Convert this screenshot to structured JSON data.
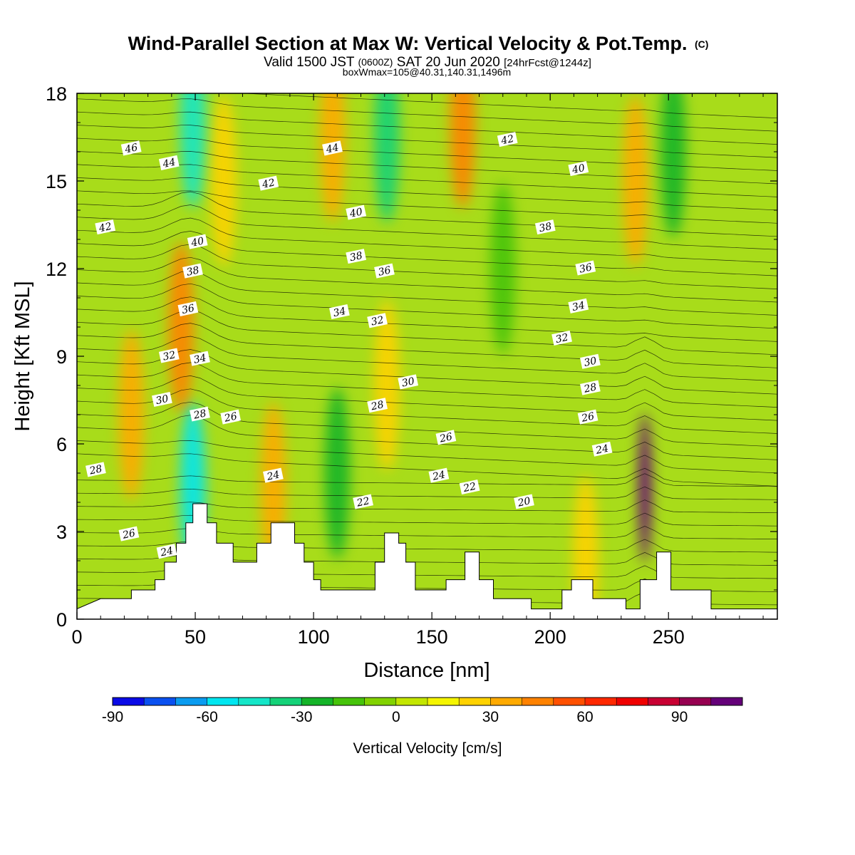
{
  "chart_data": {
    "type": "heatmap",
    "title": "Wind-Parallel Section at Max W: Vertical Velocity & Pot.Temp.",
    "title_mark": "(C)",
    "subtitle": {
      "prefix": "Valid 1500 JST",
      "utc": "(0600Z)",
      "date": "SAT 20 Jun 2020",
      "forecast": "[24hrFcst@1244z]"
    },
    "annotation": "boxWmax=105@40.31,140.31,1496m",
    "xlabel": "Distance [nm]",
    "ylabel": "Height [Kft MSL]",
    "xlim": [
      0,
      296
    ],
    "ylim": [
      0,
      18
    ],
    "x_ticks": [
      "0",
      "50",
      "100",
      "150",
      "200",
      "250"
    ],
    "y_ticks": [
      "0",
      "3",
      "6",
      "9",
      "12",
      "15",
      "18"
    ],
    "colorbar": {
      "label": "Vertical Velocity [cm/s]",
      "range": [
        -90,
        110
      ],
      "tick_labels": [
        "-90",
        "-60",
        "-30",
        "0",
        "30",
        "60",
        "90"
      ],
      "colors": [
        "#0a0ae6",
        "#0a50f0",
        "#0a9cf0",
        "#00e6f0",
        "#14e6c8",
        "#14d278",
        "#14b428",
        "#46c30a",
        "#82d200",
        "#c3e600",
        "#f5f500",
        "#ffd200",
        "#ffaa00",
        "#ff8200",
        "#ff5000",
        "#ff2800",
        "#f00000",
        "#c80032",
        "#960050",
        "#640078"
      ]
    },
    "terrain_profile_kft": [
      [
        0,
        0.35
      ],
      [
        10,
        0.7
      ],
      [
        23,
        0.7
      ],
      [
        23,
        1.0
      ],
      [
        33,
        1.0
      ],
      [
        33,
        1.35
      ],
      [
        37,
        1.35
      ],
      [
        37,
        1.95
      ],
      [
        42,
        1.95
      ],
      [
        42,
        2.6
      ],
      [
        46,
        2.6
      ],
      [
        46,
        3.3
      ],
      [
        49,
        3.3
      ],
      [
        49,
        3.95
      ],
      [
        55,
        3.95
      ],
      [
        55,
        3.3
      ],
      [
        59,
        3.3
      ],
      [
        59,
        2.6
      ],
      [
        66,
        2.6
      ],
      [
        66,
        1.95
      ],
      [
        76,
        1.95
      ],
      [
        76,
        2.6
      ],
      [
        82,
        2.6
      ],
      [
        82,
        3.3
      ],
      [
        92,
        3.3
      ],
      [
        92,
        2.6
      ],
      [
        96,
        2.6
      ],
      [
        96,
        1.95
      ],
      [
        100,
        1.95
      ],
      [
        100,
        1.35
      ],
      [
        103,
        1.35
      ],
      [
        103,
        1.0
      ],
      [
        126,
        1.0
      ],
      [
        126,
        1.95
      ],
      [
        130,
        1.95
      ],
      [
        130,
        2.95
      ],
      [
        136,
        2.95
      ],
      [
        136,
        2.6
      ],
      [
        139,
        2.6
      ],
      [
        139,
        1.95
      ],
      [
        143,
        1.95
      ],
      [
        143,
        1.0
      ],
      [
        156,
        1.0
      ],
      [
        156,
        1.35
      ],
      [
        164,
        1.35
      ],
      [
        164,
        2.3
      ],
      [
        170,
        2.3
      ],
      [
        170,
        1.35
      ],
      [
        176,
        1.35
      ],
      [
        176,
        0.7
      ],
      [
        192,
        0.7
      ],
      [
        192,
        0.35
      ],
      [
        205,
        0.35
      ],
      [
        205,
        1.0
      ],
      [
        209,
        1.0
      ],
      [
        209,
        1.35
      ],
      [
        218,
        1.35
      ],
      [
        218,
        0.7
      ],
      [
        232,
        0.7
      ],
      [
        232,
        0.35
      ],
      [
        238,
        0.35
      ],
      [
        238,
        1.35
      ],
      [
        245,
        1.35
      ],
      [
        245,
        2.3
      ],
      [
        251,
        2.3
      ],
      [
        251,
        1.0
      ],
      [
        268,
        1.0
      ],
      [
        268,
        0.35
      ],
      [
        296,
        0.35
      ]
    ],
    "vertical_velocity_features_cm_s": [
      {
        "x": 23,
        "z": 7.0,
        "value": 35
      },
      {
        "x": 44,
        "z": 10.0,
        "value": 45
      },
      {
        "x": 49,
        "z": 4.5,
        "value": -60
      },
      {
        "x": 49,
        "z": 17.0,
        "value": -50
      },
      {
        "x": 62,
        "z": 15.0,
        "value": 25
      },
      {
        "x": 83,
        "z": 4.5,
        "value": 30
      },
      {
        "x": 108,
        "z": 16.5,
        "value": 30
      },
      {
        "x": 131,
        "z": 16.5,
        "value": -40
      },
      {
        "x": 131,
        "z": 8.0,
        "value": 25
      },
      {
        "x": 163,
        "z": 17.0,
        "value": 40
      },
      {
        "x": 215,
        "z": 2.0,
        "value": 20
      },
      {
        "x": 236,
        "z": 15.0,
        "value": 30
      },
      {
        "x": 240,
        "z": 4.5,
        "value": 105
      },
      {
        "x": 252,
        "z": 16.0,
        "value": -25
      },
      {
        "x": 110,
        "z": 5.0,
        "value": -25
      },
      {
        "x": 180,
        "z": 12.0,
        "value": -20
      }
    ],
    "theta_contour_labels": [
      {
        "x": 23,
        "z": 16.1,
        "text": "46"
      },
      {
        "x": 39,
        "z": 15.6,
        "text": "44"
      },
      {
        "x": 12,
        "z": 13.4,
        "text": "42"
      },
      {
        "x": 81,
        "z": 14.9,
        "text": "42"
      },
      {
        "x": 108,
        "z": 16.1,
        "text": "44"
      },
      {
        "x": 182,
        "z": 16.4,
        "text": "42"
      },
      {
        "x": 212,
        "z": 15.4,
        "text": "40"
      },
      {
        "x": 51,
        "z": 12.9,
        "text": "40"
      },
      {
        "x": 118,
        "z": 13.9,
        "text": "40"
      },
      {
        "x": 198,
        "z": 13.4,
        "text": "38"
      },
      {
        "x": 49,
        "z": 11.9,
        "text": "38"
      },
      {
        "x": 118,
        "z": 12.4,
        "text": "38"
      },
      {
        "x": 130,
        "z": 11.9,
        "text": "36"
      },
      {
        "x": 215,
        "z": 12.0,
        "text": "36"
      },
      {
        "x": 47,
        "z": 10.6,
        "text": "36"
      },
      {
        "x": 111,
        "z": 10.5,
        "text": "34"
      },
      {
        "x": 212,
        "z": 10.7,
        "text": "34"
      },
      {
        "x": 127,
        "z": 10.2,
        "text": "32"
      },
      {
        "x": 205,
        "z": 9.6,
        "text": "32"
      },
      {
        "x": 39,
        "z": 9.0,
        "text": "32"
      },
      {
        "x": 52,
        "z": 8.9,
        "text": "34"
      },
      {
        "x": 140,
        "z": 8.1,
        "text": "30"
      },
      {
        "x": 217,
        "z": 8.8,
        "text": "30"
      },
      {
        "x": 36,
        "z": 7.5,
        "text": "30"
      },
      {
        "x": 127,
        "z": 7.3,
        "text": "28"
      },
      {
        "x": 217,
        "z": 7.9,
        "text": "28"
      },
      {
        "x": 52,
        "z": 7.0,
        "text": "28"
      },
      {
        "x": 65,
        "z": 6.9,
        "text": "26"
      },
      {
        "x": 216,
        "z": 6.9,
        "text": "26"
      },
      {
        "x": 156,
        "z": 6.2,
        "text": "26"
      },
      {
        "x": 8,
        "z": 5.1,
        "text": "28"
      },
      {
        "x": 222,
        "z": 5.8,
        "text": "24"
      },
      {
        "x": 83,
        "z": 4.9,
        "text": "24"
      },
      {
        "x": 153,
        "z": 4.9,
        "text": "24"
      },
      {
        "x": 166,
        "z": 4.5,
        "text": "22"
      },
      {
        "x": 121,
        "z": 4.0,
        "text": "22"
      },
      {
        "x": 189,
        "z": 4.0,
        "text": "20"
      },
      {
        "x": 22,
        "z": 2.9,
        "text": "26"
      },
      {
        "x": 38,
        "z": 2.3,
        "text": "24"
      }
    ]
  }
}
